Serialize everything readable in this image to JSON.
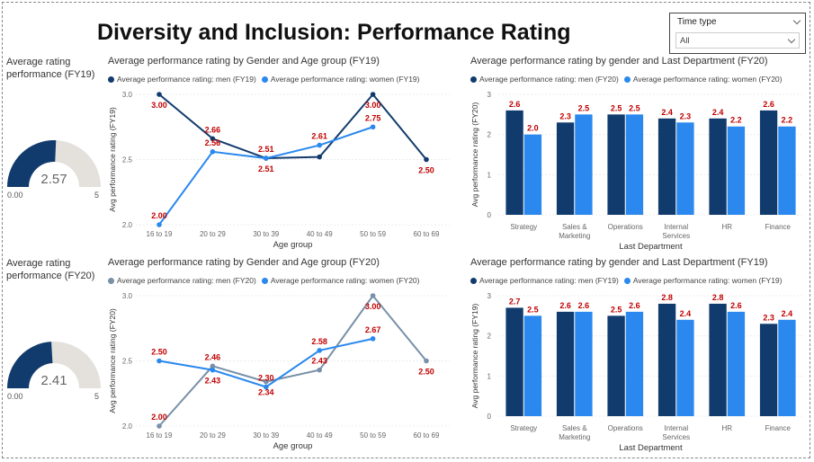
{
  "page": {
    "title": "Diversity and Inclusion: Performance Rating"
  },
  "slicer": {
    "label": "Time type",
    "value": "All"
  },
  "colors": {
    "dark": "#123b6d",
    "light": "#2a88ee",
    "grey": "#7890a8",
    "label": "#c00000",
    "gaugeBg": "#e4e1dc"
  },
  "gauges": [
    {
      "title": "Average rating performance (FY19)",
      "value": "2.57",
      "min": "0.00",
      "max": "5",
      "fraction": 0.514
    },
    {
      "title": "Average rating performance (FY20)",
      "value": "2.41",
      "min": "0.00",
      "max": "5",
      "fraction": 0.482
    }
  ],
  "chart_data": [
    {
      "type": "line",
      "title": "Average performance rating by Gender and Age group (FY19)",
      "xlabel": "Age group",
      "ylabel": "Avg performance rating (FY19)",
      "ylim": [
        2.0,
        3.0
      ],
      "yticks": [
        "2.0",
        "2.5",
        "3.0"
      ],
      "categories": [
        "16 to 19",
        "20 to 29",
        "30 to 39",
        "40 to 49",
        "50 to 59",
        "60 to 69"
      ],
      "series": [
        {
          "name": "Average performance rating: men (FY19)",
          "color": "#123b6d",
          "values": [
            3.0,
            2.66,
            2.51,
            2.52,
            3.0,
            2.5
          ],
          "labels": [
            "3.00",
            "2.66",
            "2.51",
            "",
            "3.00",
            "2.50"
          ],
          "labelPos": [
            "below",
            "above",
            "below",
            "",
            "below",
            "below"
          ]
        },
        {
          "name": "Average performance rating: women (FY19)",
          "color": "#2a88ee",
          "values": [
            2.0,
            2.56,
            2.51,
            2.61,
            2.75,
            null
          ],
          "labels": [
            "2.00",
            "2.56",
            "2.51",
            "2.61",
            "2.75",
            ""
          ],
          "labelPos": [
            "above",
            "above",
            "above",
            "above",
            "above",
            ""
          ]
        }
      ]
    },
    {
      "type": "bar",
      "title": "Average performance rating by gender and Last Department (FY20)",
      "xlabel": "Last Department",
      "ylabel": "Avg performance rating (FY20)",
      "ylim": [
        0,
        3
      ],
      "yticks": [
        "0",
        "1",
        "2",
        "3"
      ],
      "categories": [
        "Strategy",
        "Sales & Marketing",
        "Operations",
        "Internal Services",
        "HR",
        "Finance"
      ],
      "series": [
        {
          "name": "Average performance rating: men (FY20)",
          "color": "#123b6d",
          "values": [
            2.6,
            2.3,
            2.5,
            2.4,
            2.4,
            2.6
          ]
        },
        {
          "name": "Average performance rating: women (FY20)",
          "color": "#2a88ee",
          "values": [
            2.0,
            2.5,
            2.5,
            2.3,
            2.2,
            2.2
          ]
        }
      ]
    },
    {
      "type": "line",
      "title": "Average performance rating by Gender and Age group (FY20)",
      "xlabel": "Age group",
      "ylabel": "Avg performance rating (FY20)",
      "ylim": [
        2.0,
        3.0
      ],
      "yticks": [
        "2.0",
        "2.5",
        "3.0"
      ],
      "categories": [
        "16 to 19",
        "20 to 29",
        "30 to 39",
        "40 to 49",
        "50 to 59",
        "60 to 69"
      ],
      "series": [
        {
          "name": "Average performance rating: men (FY20)",
          "color": "#7890a8",
          "values": [
            2.0,
            2.46,
            2.34,
            2.43,
            3.0,
            2.5
          ],
          "labels": [
            "2.00",
            "2.46",
            "2.34",
            "2.43",
            "3.00",
            "2.50"
          ],
          "labelPos": [
            "above",
            "above",
            "below",
            "above",
            "below",
            "below"
          ]
        },
        {
          "name": "Average performance rating: women (FY20)",
          "color": "#2a88ee",
          "values": [
            2.5,
            2.43,
            2.3,
            2.58,
            2.67,
            null
          ],
          "labels": [
            "2.50",
            "2.43",
            "2.30",
            "2.58",
            "2.67",
            ""
          ],
          "labelPos": [
            "above",
            "below",
            "above",
            "above",
            "above",
            ""
          ]
        }
      ]
    },
    {
      "type": "bar",
      "title": "Average performance rating by gender and Last Department (FY19)",
      "xlabel": "Last Department",
      "ylabel": "Avg performance rating (FY19)",
      "ylim": [
        0,
        3
      ],
      "yticks": [
        "0",
        "1",
        "2",
        "3"
      ],
      "categories": [
        "Strategy",
        "Sales & Marketing",
        "Operations",
        "Internal Services",
        "HR",
        "Finance"
      ],
      "series": [
        {
          "name": "Average performance rating: men (FY19)",
          "color": "#123b6d",
          "values": [
            2.7,
            2.6,
            2.5,
            2.8,
            2.8,
            2.3
          ]
        },
        {
          "name": "Average performance rating: women (FY19)",
          "color": "#2a88ee",
          "values": [
            2.5,
            2.6,
            2.6,
            2.4,
            2.6,
            2.4
          ]
        }
      ]
    }
  ]
}
